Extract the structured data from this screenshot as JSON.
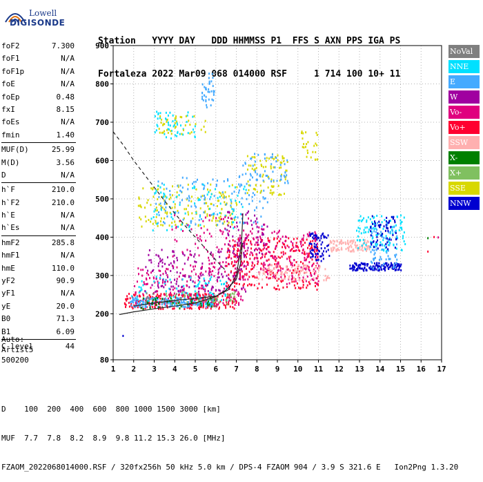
{
  "logo": {
    "line1": "Lowell",
    "line2": "DIGISONDE"
  },
  "header": {
    "labels": "Station   YYYY DAY   DDD HHMMSS P1  FFS S AXN PPS IGA PS",
    "values": "Fortaleza 2022 Mar09 068 014000 RSF     1 714 100 10+ 11"
  },
  "params": [
    {
      "label": "foF2",
      "value": "7.300"
    },
    {
      "label": "foF1",
      "value": "N/A"
    },
    {
      "label": "foF1p",
      "value": "N/A"
    },
    {
      "label": "foE",
      "value": "N/A"
    },
    {
      "label": "foEp",
      "value": "0.48"
    },
    {
      "label": "fxI",
      "value": "8.15"
    },
    {
      "label": "foEs",
      "value": "N/A"
    },
    {
      "label": "fmin",
      "value": "1.40"
    },
    {
      "label": "MUF(D)",
      "value": "25.99",
      "divider": true
    },
    {
      "label": "M(D)",
      "value": "3.56"
    },
    {
      "label": "D",
      "value": "N/A"
    },
    {
      "label": "h`F",
      "value": "210.0",
      "divider": true
    },
    {
      "label": "h`F2",
      "value": "210.0"
    },
    {
      "label": "h`E",
      "value": "N/A"
    },
    {
      "label": "h`Es",
      "value": "N/A"
    },
    {
      "label": "hmF2",
      "value": "285.8",
      "divider": true
    },
    {
      "label": "hmF1",
      "value": "N/A"
    },
    {
      "label": "hmE",
      "value": "110.0"
    },
    {
      "label": "yF2",
      "value": "90.9"
    },
    {
      "label": "yF1",
      "value": "N/A"
    },
    {
      "label": "yE",
      "value": "20.0"
    },
    {
      "label": "B0",
      "value": "71.3"
    },
    {
      "label": "B1",
      "value": "6.09"
    },
    {
      "label": "C-level",
      "value": "44",
      "divider": true
    }
  ],
  "autoscale": {
    "line1": "Auto:",
    "line2": "Artist5",
    "line3": "500200"
  },
  "legend": [
    {
      "label": "NoVal",
      "color": "#7f7f7f"
    },
    {
      "label": "NNE",
      "color": "#00e0ff"
    },
    {
      "label": "E",
      "color": "#44aaff"
    },
    {
      "label": "W",
      "color": "#a000a0"
    },
    {
      "label": "Vo-",
      "color": "#e0007f"
    },
    {
      "label": "Vo+",
      "color": "#ff0030"
    },
    {
      "label": "SSW",
      "color": "#ffb0b0"
    },
    {
      "label": "X-",
      "color": "#008000"
    },
    {
      "label": "X+",
      "color": "#80c060"
    },
    {
      "label": "SSE",
      "color": "#d8d800"
    },
    {
      "label": "NNW",
      "color": "#0000d0"
    }
  ],
  "bottom": {
    "d_line": "D    100  200  400  600  800 1000 1500 3000 [km]",
    "muf_line": "MUF  7.7  7.8  8.2  8.9  9.8 11.2 15.3 26.0 [MHz]",
    "footer": "FZAOM_2022068014000.RSF / 320fx256h 50 kHz 5.0 km / DPS-4 FZAOM 904 / 3.9 S 321.6 E   Ion2Png 1.3.20"
  },
  "chart_data": {
    "type": "scatter",
    "xlim": [
      1,
      17
    ],
    "ylim": [
      80,
      900
    ],
    "x_ticks": [
      1,
      2,
      3,
      4,
      5,
      6,
      7,
      8,
      9,
      10,
      11,
      12,
      13,
      14,
      15,
      16,
      17
    ],
    "y_ticks": [
      80,
      200,
      300,
      400,
      500,
      600,
      700,
      800,
      900
    ],
    "point_groups": [
      {
        "color": "#ff0030",
        "x": [
          1.5,
          7.0
        ],
        "y": [
          215,
          255
        ],
        "n": 260
      },
      {
        "color": "#e0007f",
        "x": [
          2.0,
          7.5
        ],
        "y": [
          225,
          330
        ],
        "n": 200
      },
      {
        "color": "#44aaff",
        "x": [
          1.8,
          6.0
        ],
        "y": [
          220,
          245
        ],
        "n": 180
      },
      {
        "color": "#00e0ff",
        "x": [
          1.8,
          6.5
        ],
        "y": [
          225,
          300
        ],
        "n": 90
      },
      {
        "color": "#a000a0",
        "x": [
          2.5,
          7.5
        ],
        "y": [
          260,
          370
        ],
        "n": 160
      },
      {
        "color": "#ff0030",
        "x": [
          6.5,
          11.0
        ],
        "y": [
          265,
          400
        ],
        "n": 300
      },
      {
        "color": "#e0007f",
        "x": [
          7.0,
          11.0
        ],
        "y": [
          280,
          420
        ],
        "n": 180
      },
      {
        "color": "#ffb0b0",
        "x": [
          8.0,
          11.5
        ],
        "y": [
          290,
          330
        ],
        "n": 100
      },
      {
        "color": "#ffb0b0",
        "x": [
          11.5,
          13.5
        ],
        "y": [
          365,
          395
        ],
        "n": 100
      },
      {
        "color": "#0000d0",
        "x": [
          10.5,
          11.5
        ],
        "y": [
          340,
          415
        ],
        "n": 70
      },
      {
        "color": "#0000d0",
        "x": [
          12.5,
          15.0
        ],
        "y": [
          315,
          335
        ],
        "n": 140
      },
      {
        "color": "#00e0ff",
        "x": [
          12.8,
          15.2
        ],
        "y": [
          365,
          460
        ],
        "n": 120
      },
      {
        "color": "#44aaff",
        "x": [
          13.5,
          14.8
        ],
        "y": [
          320,
          440
        ],
        "n": 70
      },
      {
        "color": "#0000d0",
        "x": [
          13.5,
          14.8
        ],
        "y": [
          370,
          460
        ],
        "n": 60
      },
      {
        "color": "#d8d800",
        "x": [
          2.2,
          7.0
        ],
        "y": [
          430,
          540
        ],
        "n": 160
      },
      {
        "color": "#44aaff",
        "x": [
          3.0,
          8.5
        ],
        "y": [
          430,
          560
        ],
        "n": 130
      },
      {
        "color": "#00e0ff",
        "x": [
          2.8,
          7.5
        ],
        "y": [
          420,
          540
        ],
        "n": 80
      },
      {
        "color": "#e0007f",
        "x": [
          3.8,
          8.5
        ],
        "y": [
          320,
          460
        ],
        "n": 110
      },
      {
        "color": "#a000a0",
        "x": [
          6.5,
          8.5
        ],
        "y": [
          350,
          470
        ],
        "n": 60
      },
      {
        "color": "#d8d800",
        "x": [
          7.5,
          9.5
        ],
        "y": [
          510,
          620
        ],
        "n": 80
      },
      {
        "color": "#44aaff",
        "x": [
          7.0,
          9.5
        ],
        "y": [
          540,
          620
        ],
        "n": 60
      },
      {
        "color": "#00e0ff",
        "x": [
          3.0,
          5.0
        ],
        "y": [
          660,
          730
        ],
        "n": 50
      },
      {
        "color": "#d8d800",
        "x": [
          3.2,
          5.5
        ],
        "y": [
          670,
          720
        ],
        "n": 40
      },
      {
        "color": "#44aaff",
        "x": [
          5.3,
          5.9
        ],
        "y": [
          740,
          830
        ],
        "n": 40
      },
      {
        "color": "#d8d800",
        "x": [
          10.0,
          11.0
        ],
        "y": [
          600,
          680
        ],
        "n": 25
      },
      {
        "color": "#008000",
        "x": [
          2.0,
          6.0
        ],
        "y": [
          215,
          245
        ],
        "n": 40
      },
      {
        "color": "#80c060",
        "x": [
          3.0,
          7.0
        ],
        "y": [
          225,
          260
        ],
        "n": 40
      },
      {
        "color": "#7f7f7f",
        "x": [
          2.5,
          6.0
        ],
        "y": [
          220,
          260
        ],
        "n": 20
      }
    ],
    "lines": [
      {
        "style": "solid",
        "x": [
          1.3,
          2,
          3,
          4,
          5,
          6,
          6.5,
          7,
          7.2,
          7.3
        ],
        "y": [
          198,
          205,
          213,
          220,
          228,
          245,
          262,
          290,
          330,
          385
        ]
      },
      {
        "style": "solid",
        "x": [
          2,
          3,
          4,
          5,
          6,
          6.6,
          7.0,
          7.25,
          7.32
        ],
        "y": [
          220,
          228,
          235,
          240,
          246,
          262,
          300,
          380,
          462
        ]
      },
      {
        "style": "dashed",
        "x": [
          1,
          1.5,
          2,
          2.5,
          3,
          3.5,
          4,
          4.5,
          5,
          5.5,
          6,
          6.5
        ],
        "y": [
          675,
          640,
          600,
          565,
          530,
          495,
          462,
          430,
          400,
          370,
          340,
          312
        ]
      }
    ]
  }
}
